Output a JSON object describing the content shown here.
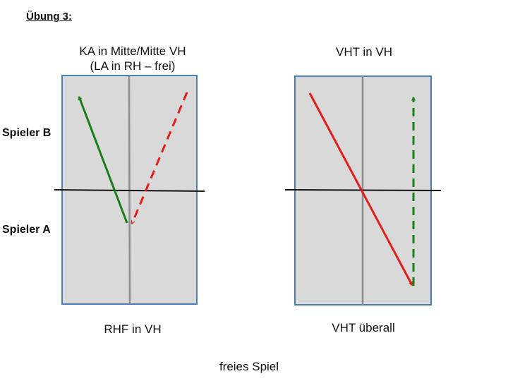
{
  "title": "Übung 3:",
  "players": {
    "b": "Spieler B",
    "a": "Spieler A"
  },
  "left": {
    "top_label_line1": "KA in Mitte/Mitte VH",
    "top_label_line2": "(LA in RH – frei)",
    "bottom_label": "RHF in VH"
  },
  "right": {
    "top_label": "VHT in VH",
    "bottom_label": "VHT überall"
  },
  "footer": "freies Spiel",
  "colors": {
    "table_fill": "#d9d9d9",
    "table_border": "#4a7ebb",
    "centerline": "#8c8c8c",
    "net": "#111111",
    "green": "#1a7f1a",
    "red": "#e31c1c",
    "dashed_green": "#1a7f1a"
  }
}
